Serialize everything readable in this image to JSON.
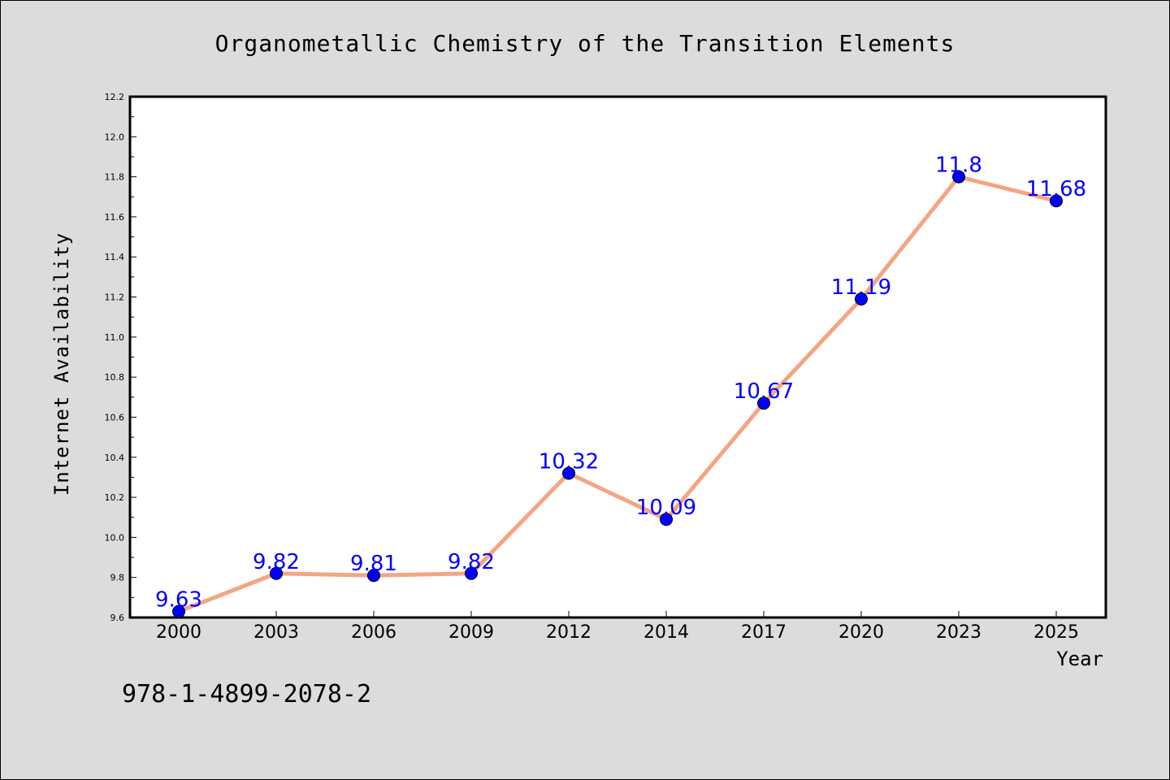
{
  "chart_data": {
    "type": "line",
    "title": "Organometallic Chemistry of the Transition Elements",
    "xlabel": "Year",
    "ylabel": "Internet Availability",
    "categories": [
      "2000",
      "2003",
      "2006",
      "2009",
      "2012",
      "2014",
      "2017",
      "2020",
      "2023",
      "2025"
    ],
    "series": [
      {
        "values": [
          9.63,
          9.82,
          9.81,
          9.82,
          10.32,
          10.09,
          10.67,
          11.19,
          11.8,
          11.68
        ],
        "labels": [
          "9.63",
          "9.82",
          "9.81",
          "9.82",
          "10.32",
          "10.09",
          "10.67",
          "11.19",
          "11.8",
          "11.68"
        ]
      }
    ],
    "ylim": [
      9.6,
      12.2
    ],
    "yticks": [
      "9.6",
      "9.8",
      "10.0",
      "10.2",
      "10.4",
      "10.6",
      "10.8",
      "11.0",
      "11.2",
      "11.4",
      "11.6",
      "11.8",
      "12.0",
      "12.2"
    ],
    "grid": false,
    "legend": "none"
  },
  "annotation": {
    "isbn": "978-1-4899-2078-2"
  },
  "colors": {
    "background": "#dcdcdc",
    "plot_area": "#ffffff",
    "line": "#f4a582",
    "marker": "#0000ff",
    "label": "#0000ff"
  }
}
